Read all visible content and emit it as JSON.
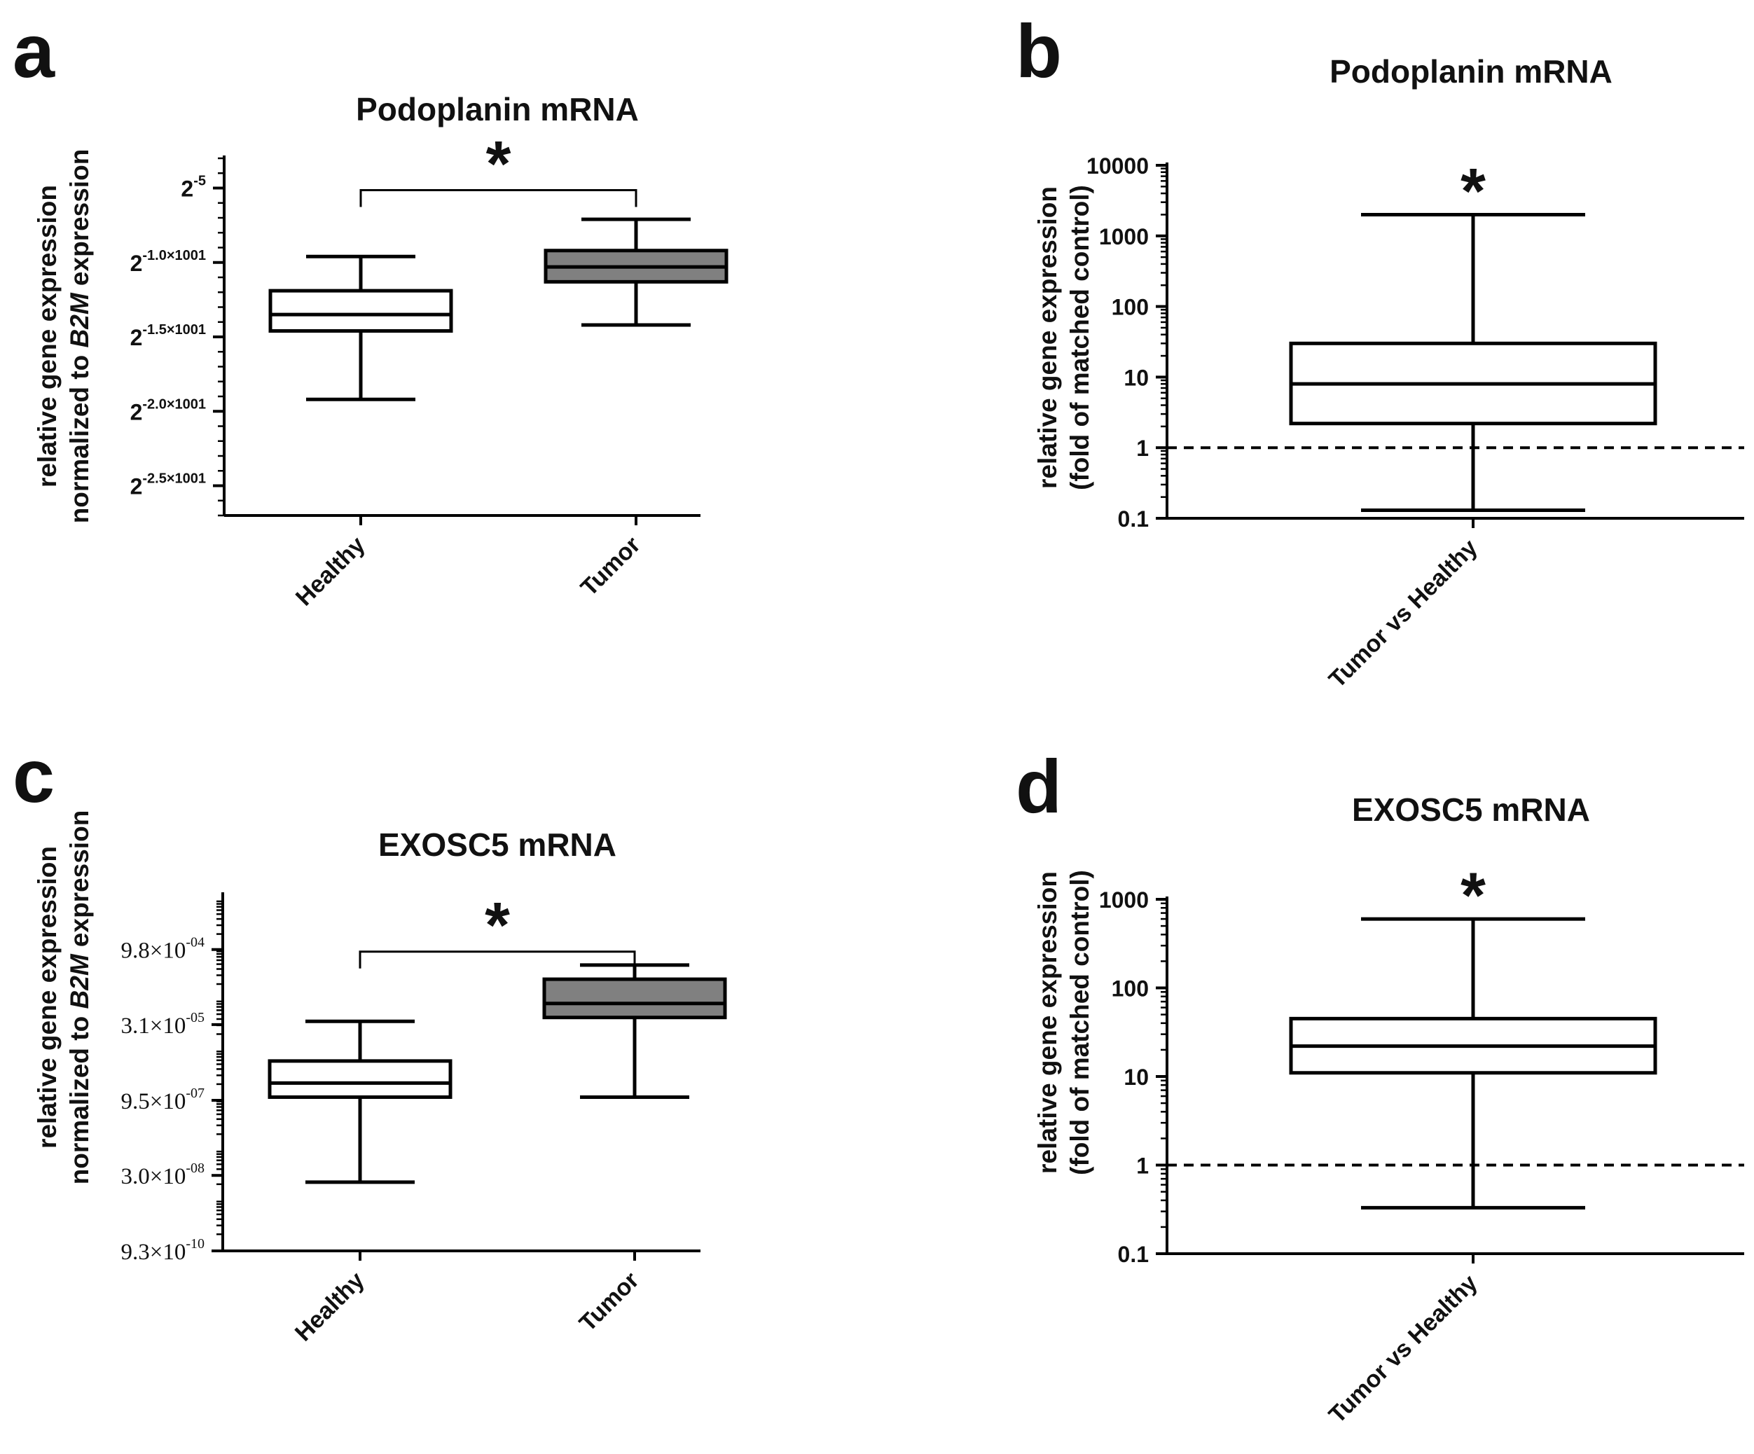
{
  "colors": {
    "tumor_fill": "#808080",
    "healthy_fill": "#ffffff",
    "ink": "#000000"
  },
  "chart_data": [
    {
      "panel": "a",
      "type": "box",
      "title": "Podoplanin mRNA",
      "ylabel_lines": [
        [
          {
            "t": "relative gene expression",
            "i": false
          }
        ],
        [
          {
            "t": "normalized to ",
            "i": false
          },
          {
            "t": "B2M",
            "i": true
          },
          {
            "t": " expression",
            "i": false
          }
        ]
      ],
      "yscale": "log2-exponent",
      "ylim": [
        -27,
        -3
      ],
      "yticks": [
        {
          "v": -5,
          "base": "2",
          "exp": "-5"
        },
        {
          "v": -10,
          "base": "2",
          "exp": "-1.0×1001"
        },
        {
          "v": -15,
          "base": "2",
          "exp": "-1.5×1001"
        },
        {
          "v": -20,
          "base": "2",
          "exp": "-2.0×1001"
        },
        {
          "v": -25,
          "base": "2",
          "exp": "-2.5×1001"
        }
      ],
      "categories": [
        "Healthy",
        "Tumor"
      ],
      "boxes": [
        {
          "category": "Healthy",
          "min": -19.2,
          "q1": -14.6,
          "median": -13.5,
          "q3": -11.9,
          "max": -9.6,
          "fill": "#ffffff"
        },
        {
          "category": "Tumor",
          "min": -14.2,
          "q1": -11.3,
          "median": -10.3,
          "q3": -9.2,
          "max": -7.1,
          "fill": "#808080"
        }
      ],
      "significance": {
        "label": "*",
        "from": "Healthy",
        "to": "Tumor",
        "y": -5.0
      }
    },
    {
      "panel": "b",
      "type": "box",
      "title": "Podoplanin mRNA",
      "ylabel_lines": [
        [
          {
            "t": "relative gene expression",
            "i": false
          }
        ],
        [
          {
            "t": "(fold of matched control)",
            "i": false
          }
        ]
      ],
      "yscale": "log10",
      "ylim": [
        0.1,
        10000
      ],
      "yticks": [
        {
          "v": 0.1,
          "label": "0.1"
        },
        {
          "v": 1,
          "label": "1"
        },
        {
          "v": 10,
          "label": "10"
        },
        {
          "v": 100,
          "label": "100"
        },
        {
          "v": 1000,
          "label": "1000"
        },
        {
          "v": 10000,
          "label": "10000"
        }
      ],
      "categories": [
        "Tumor vs Healthy"
      ],
      "boxes": [
        {
          "category": "Tumor vs Healthy",
          "min": 0.13,
          "q1": 2.2,
          "median": 8,
          "q3": 30,
          "max": 2000,
          "fill": "#ffffff"
        }
      ],
      "reference_line": 1,
      "significance": {
        "label": "*"
      }
    },
    {
      "panel": "c",
      "type": "box",
      "title": "EXOSC5 mRNA",
      "ylabel_lines": [
        [
          {
            "t": "relative gene expression",
            "i": false
          }
        ],
        [
          {
            "t": "normalized to ",
            "i": false
          },
          {
            "t": "B2M",
            "i": true
          },
          {
            "t": " expression",
            "i": false
          }
        ]
      ],
      "yscale": "log10",
      "ylim": [
        9.3e-10,
        0.012
      ],
      "yticks": [
        {
          "v": 0.00098,
          "mant": "9.8×10",
          "exp": "-04"
        },
        {
          "v": 3.1e-05,
          "mant": "3.1×10",
          "exp": "-05"
        },
        {
          "v": 9.5e-07,
          "mant": "9.5×10",
          "exp": "-07"
        },
        {
          "v": 3e-08,
          "mant": "3.0×10",
          "exp": "-08"
        },
        {
          "v": 9.3e-10,
          "mant": "9.3×10",
          "exp": "-10"
        }
      ],
      "categories": [
        "Healthy",
        "Tumor"
      ],
      "boxes": [
        {
          "category": "Healthy",
          "min": 2.2e-08,
          "q1": 1.1e-06,
          "median": 2.1e-06,
          "q3": 5.8e-06,
          "max": 3.6e-05,
          "fill": "#ffffff"
        },
        {
          "category": "Tumor",
          "min": 1.1e-06,
          "q1": 4.3e-05,
          "median": 8.2e-05,
          "q3": 0.00025,
          "max": 0.00048,
          "fill": "#808080"
        }
      ],
      "significance": {
        "label": "*",
        "from": "Healthy",
        "to": "Tumor",
        "y": 0.00098
      }
    },
    {
      "panel": "d",
      "type": "box",
      "title": "EXOSC5 mRNA",
      "ylabel_lines": [
        [
          {
            "t": "relative gene expression",
            "i": false
          }
        ],
        [
          {
            "t": "(fold of matched control)",
            "i": false
          }
        ]
      ],
      "yscale": "log10",
      "ylim": [
        0.1,
        1000
      ],
      "yticks": [
        {
          "v": 0.1,
          "label": "0.1"
        },
        {
          "v": 1,
          "label": "1"
        },
        {
          "v": 10,
          "label": "10"
        },
        {
          "v": 100,
          "label": "100"
        },
        {
          "v": 1000,
          "label": "1000"
        }
      ],
      "categories": [
        "Tumor vs Healthy"
      ],
      "boxes": [
        {
          "category": "Tumor vs Healthy",
          "min": 0.33,
          "q1": 11,
          "median": 22,
          "q3": 45,
          "max": 600,
          "fill": "#ffffff"
        }
      ],
      "reference_line": 1,
      "significance": {
        "label": "*"
      }
    }
  ]
}
